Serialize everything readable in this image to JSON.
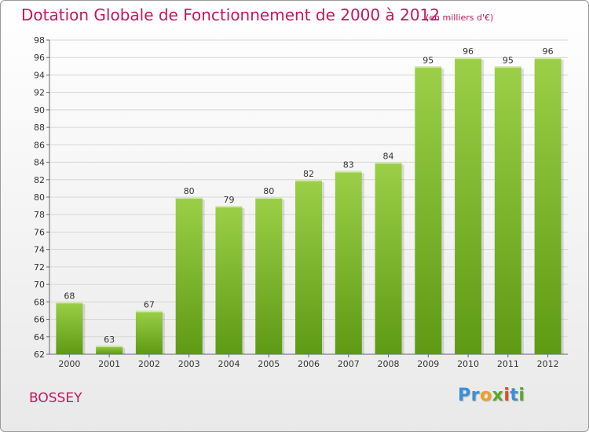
{
  "header": {
    "title": "Dotation Globale de Fonctionnement de 2000 à 2012",
    "subtitle": "(en milliers d'€)"
  },
  "footer": {
    "commune": "BOSSEY",
    "logo_letters": [
      {
        "ch": "P",
        "color": "#3a8fd8"
      },
      {
        "ch": "r",
        "color": "#3a8fd8"
      },
      {
        "ch": "o",
        "color": "#f0a020"
      },
      {
        "ch": "x",
        "color": "#5aa82a"
      },
      {
        "ch": "i",
        "color": "#e04a2a"
      },
      {
        "ch": "t",
        "color": "#3a8fd8"
      },
      {
        "ch": "i",
        "color": "#5aa82a"
      }
    ]
  },
  "chart_data": {
    "type": "bar",
    "categories": [
      "2000",
      "2001",
      "2002",
      "2003",
      "2004",
      "2005",
      "2006",
      "2007",
      "2008",
      "2009",
      "2010",
      "2011",
      "2012"
    ],
    "values": [
      68,
      63,
      67,
      80,
      79,
      80,
      82,
      83,
      84,
      95,
      96,
      95,
      96
    ],
    "ylim": [
      62,
      98
    ],
    "yticks": [
      62,
      64,
      66,
      68,
      70,
      72,
      74,
      76,
      78,
      80,
      82,
      84,
      86,
      88,
      90,
      92,
      94,
      96,
      98
    ],
    "grid": true,
    "bar_color_light": "#9ccf48",
    "bar_color_dark": "#5e9a14",
    "text_color": "#c0185e"
  }
}
